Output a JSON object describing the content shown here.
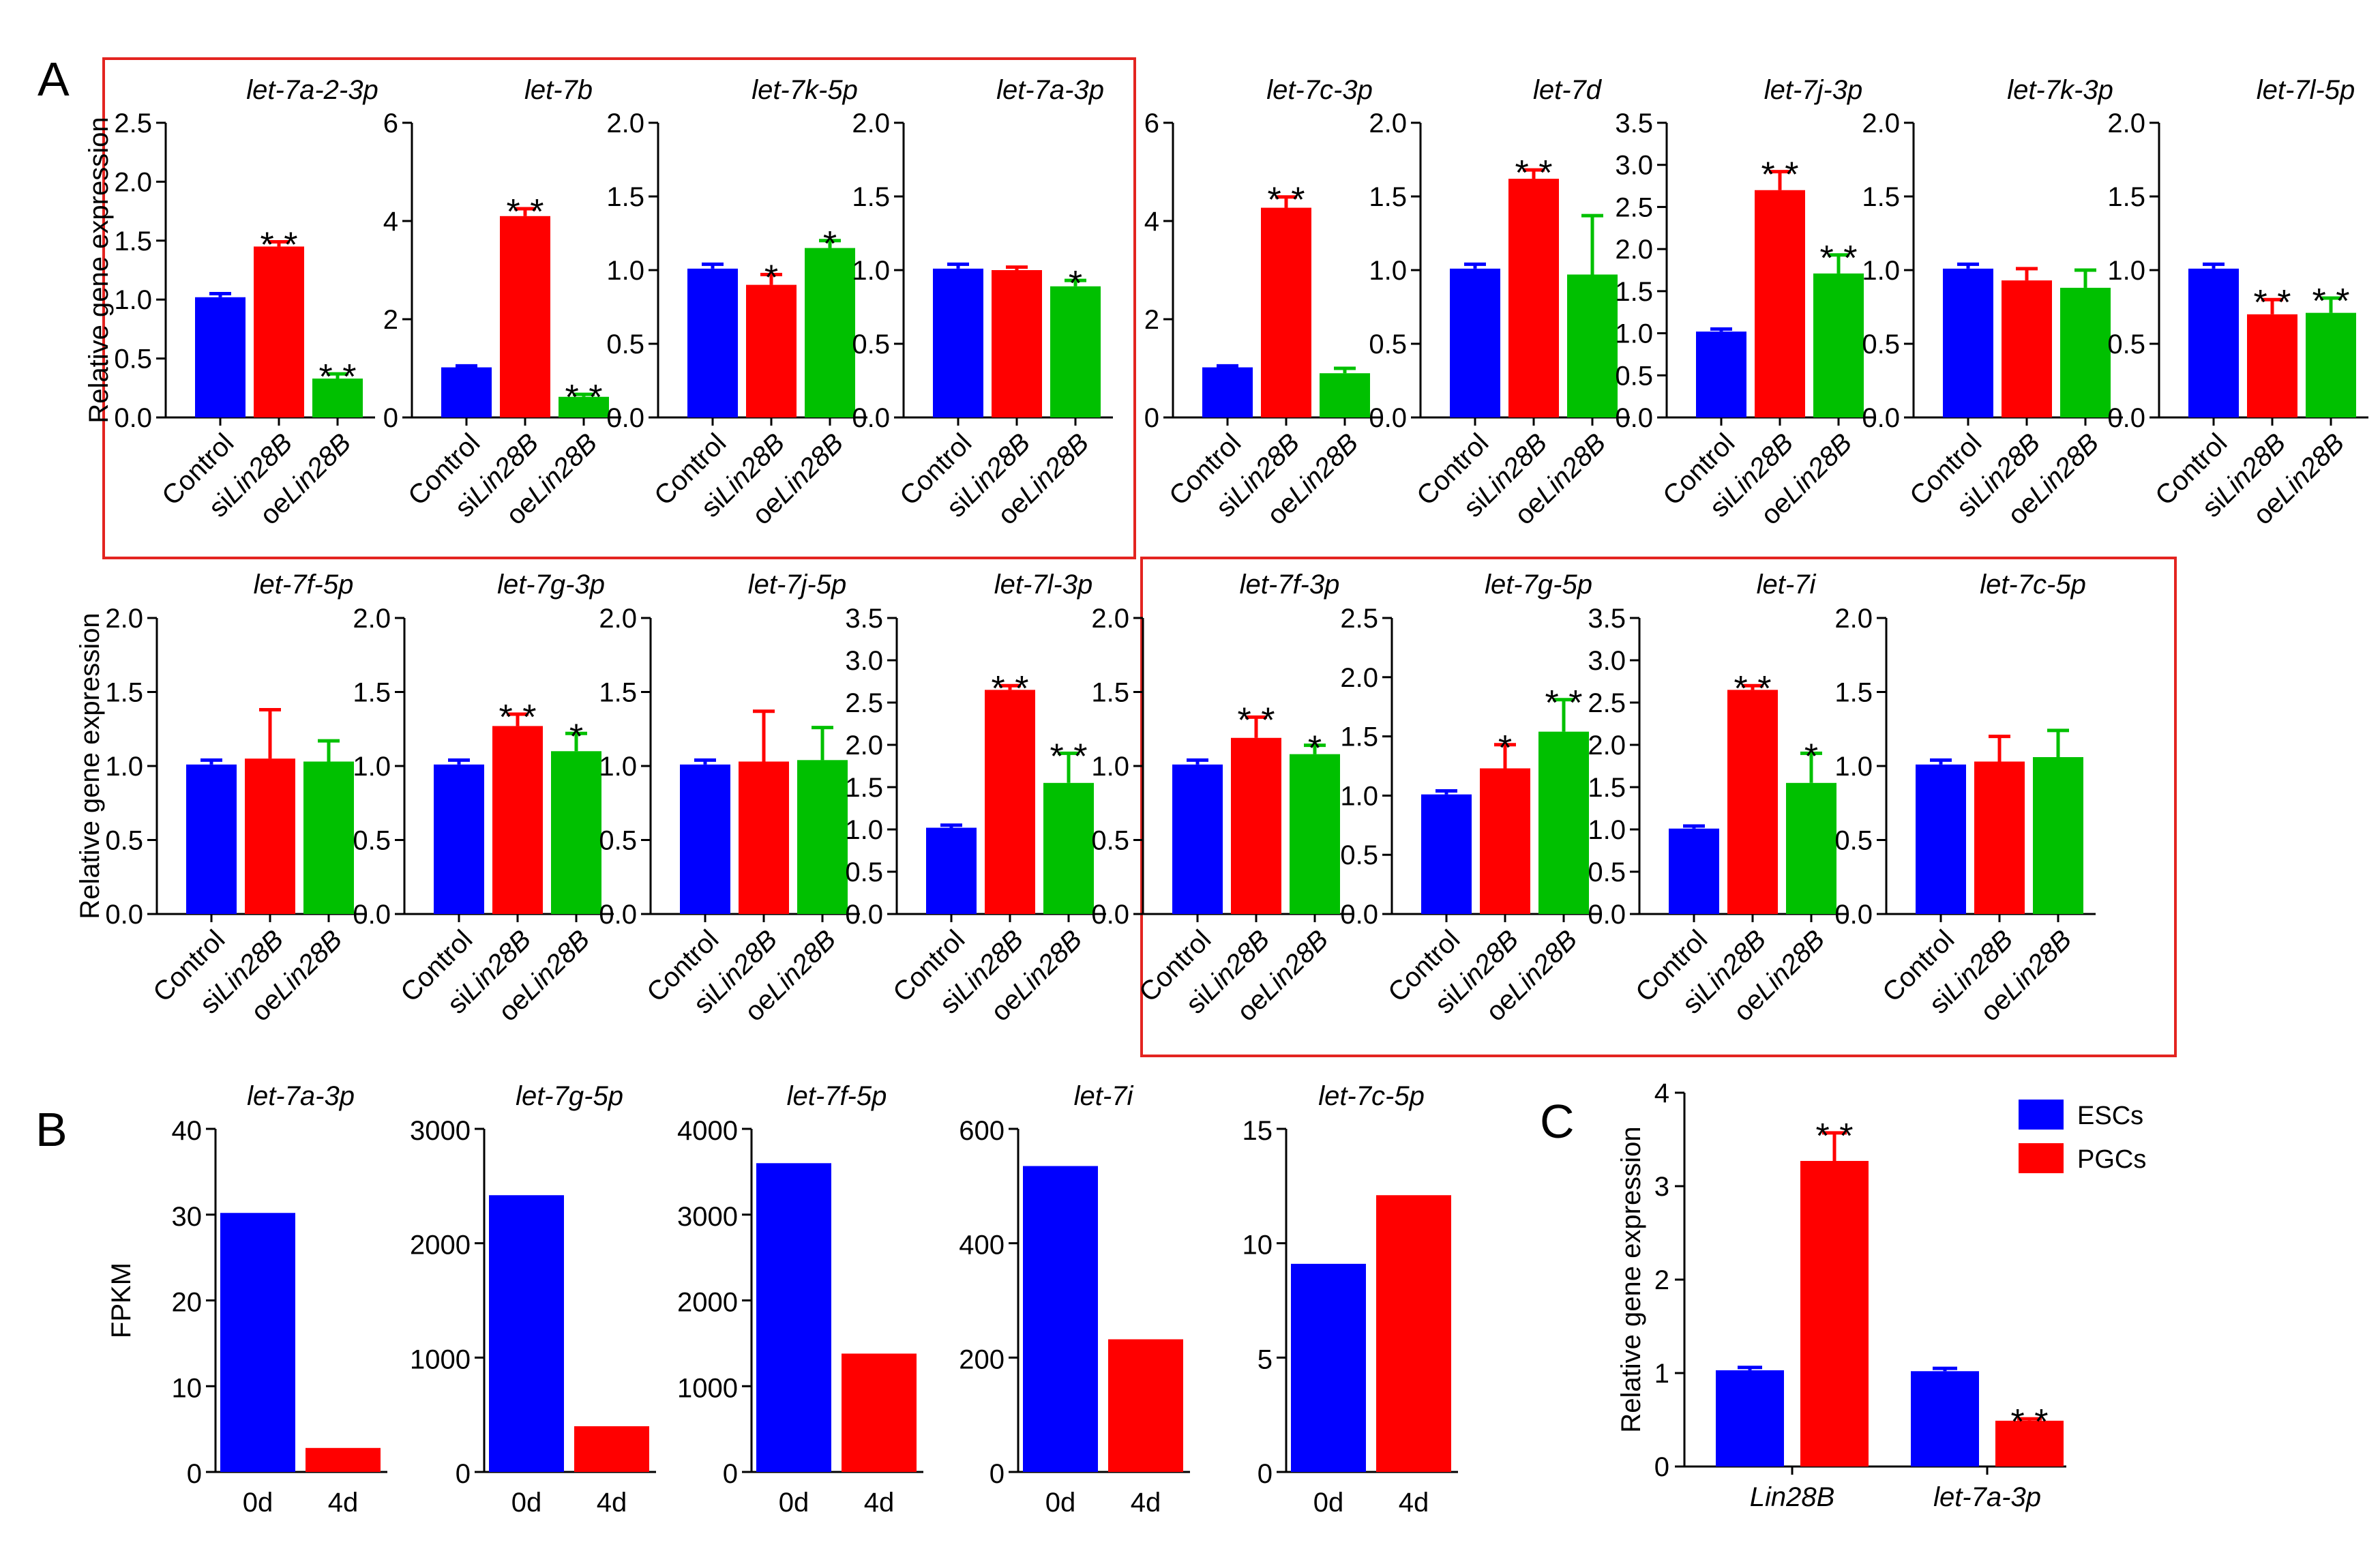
{
  "figure": {
    "panel_labels": [
      "A",
      "B",
      "C"
    ],
    "colors": {
      "control": "#0000ff",
      "siLin28B": "#ff0000",
      "oeLin28B": "#00c000",
      "highlight_box": "#e32420"
    }
  },
  "chart_data": [
    {
      "panel": "A",
      "type": "bar",
      "title": "let-7a-2-3p",
      "ylabel": "Relative gene expression",
      "categories": [
        "Control",
        "siLin28B",
        "oeLin28B"
      ],
      "values": [
        1.02,
        1.45,
        0.33
      ],
      "errors": [
        0.03,
        0.04,
        0.04
      ],
      "significance": [
        "",
        "**",
        "**"
      ],
      "ylim": [
        0,
        2.5
      ],
      "yticks": [
        "0.0",
        "0.5",
        "1.0",
        "1.5",
        "2.0",
        "2.5"
      ]
    },
    {
      "panel": "A",
      "type": "bar",
      "title": "let-7b",
      "ylabel": "",
      "categories": [
        "Control",
        "siLin28B",
        "oeLin28B"
      ],
      "values": [
        1.02,
        4.1,
        0.42
      ],
      "errors": [
        0.03,
        0.15,
        0.05
      ],
      "significance": [
        "",
        "**",
        "**"
      ],
      "ylim": [
        0,
        6
      ],
      "yticks": [
        "0",
        "2",
        "4",
        "6"
      ]
    },
    {
      "panel": "A",
      "type": "bar",
      "title": "let-7k-5p",
      "ylabel": "",
      "categories": [
        "Control",
        "siLin28B",
        "oeLin28B"
      ],
      "values": [
        1.01,
        0.9,
        1.15
      ],
      "errors": [
        0.03,
        0.07,
        0.05
      ],
      "significance": [
        "",
        "*",
        "*"
      ],
      "ylim": [
        0,
        2
      ],
      "yticks": [
        "0.0",
        "0.5",
        "1.0",
        "1.5",
        "2.0"
      ]
    },
    {
      "panel": "A",
      "type": "bar",
      "title": "let-7a-3p",
      "ylabel": "",
      "categories": [
        "Control",
        "siLin28B",
        "oeLin28B"
      ],
      "values": [
        1.01,
        1.0,
        0.89
      ],
      "errors": [
        0.03,
        0.02,
        0.04
      ],
      "significance": [
        "",
        "",
        "*"
      ],
      "ylim": [
        0,
        2
      ],
      "yticks": [
        "0.0",
        "0.5",
        "1.0",
        "1.5",
        "2.0"
      ]
    },
    {
      "panel": "A",
      "type": "bar",
      "title": "let-7c-3p",
      "ylabel": "",
      "categories": [
        "Control",
        "siLin28B",
        "oeLin28B"
      ],
      "values": [
        1.02,
        4.27,
        0.9
      ],
      "errors": [
        0.03,
        0.22,
        0.1
      ],
      "significance": [
        "",
        "**",
        ""
      ],
      "ylim": [
        0,
        6
      ],
      "yticks": [
        "0",
        "2",
        "4",
        "6"
      ]
    },
    {
      "panel": "A",
      "type": "bar",
      "title": "let-7d",
      "ylabel": "",
      "categories": [
        "Control",
        "siLin28B",
        "oeLin28B"
      ],
      "values": [
        1.01,
        1.62,
        0.97
      ],
      "errors": [
        0.03,
        0.06,
        0.4
      ],
      "significance": [
        "",
        "**",
        ""
      ],
      "ylim": [
        0,
        2
      ],
      "yticks": [
        "0.0",
        "0.5",
        "1.0",
        "1.5",
        "2.0"
      ]
    },
    {
      "panel": "A",
      "type": "bar",
      "title": "let-7j-3p",
      "ylabel": "",
      "categories": [
        "Control",
        "siLin28B",
        "oeLin28B"
      ],
      "values": [
        1.02,
        2.7,
        1.71
      ],
      "errors": [
        0.03,
        0.22,
        0.22
      ],
      "significance": [
        "",
        "**",
        "**"
      ],
      "ylim": [
        0,
        3.5
      ],
      "yticks": [
        "0.0",
        "0.5",
        "1.0",
        "1.5",
        "2.0",
        "2.5",
        "3.0",
        "3.5"
      ]
    },
    {
      "panel": "A",
      "type": "bar",
      "title": "let-7k-3p",
      "ylabel": "",
      "categories": [
        "Control",
        "siLin28B",
        "oeLin28B"
      ],
      "values": [
        1.01,
        0.93,
        0.88
      ],
      "errors": [
        0.03,
        0.08,
        0.12
      ],
      "significance": [
        "",
        "",
        ""
      ],
      "ylim": [
        0,
        2
      ],
      "yticks": [
        "0.0",
        "0.5",
        "1.0",
        "1.5",
        "2.0"
      ]
    },
    {
      "panel": "A",
      "type": "bar",
      "title": "let-7l-5p",
      "ylabel": "",
      "categories": [
        "Control",
        "siLin28B",
        "oeLin28B"
      ],
      "values": [
        1.01,
        0.7,
        0.71
      ],
      "errors": [
        0.03,
        0.1,
        0.1
      ],
      "significance": [
        "",
        "**",
        "**"
      ],
      "ylim": [
        0,
        2
      ],
      "yticks": [
        "0.0",
        "0.5",
        "1.0",
        "1.5",
        "2.0"
      ]
    },
    {
      "panel": "A",
      "type": "bar",
      "title": "let-7f-5p",
      "ylabel": "Relative gene expression",
      "categories": [
        "Control",
        "siLin28B",
        "oeLin28B"
      ],
      "values": [
        1.01,
        1.05,
        1.03
      ],
      "errors": [
        0.03,
        0.33,
        0.14
      ],
      "significance": [
        "",
        "",
        ""
      ],
      "ylim": [
        0,
        2
      ],
      "yticks": [
        "0.0",
        "0.5",
        "1.0",
        "1.5",
        "2.0"
      ]
    },
    {
      "panel": "A",
      "type": "bar",
      "title": "let-7g-3p",
      "ylabel": "",
      "categories": [
        "Control",
        "siLin28B",
        "oeLin28B"
      ],
      "values": [
        1.01,
        1.27,
        1.1
      ],
      "errors": [
        0.03,
        0.08,
        0.12
      ],
      "significance": [
        "",
        "**",
        "*"
      ],
      "ylim": [
        0,
        2
      ],
      "yticks": [
        "0.0",
        "0.5",
        "1.0",
        "1.5",
        "2.0"
      ]
    },
    {
      "panel": "A",
      "type": "bar",
      "title": "let-7j-5p",
      "ylabel": "",
      "categories": [
        "Control",
        "siLin28B",
        "oeLin28B"
      ],
      "values": [
        1.01,
        1.03,
        1.04
      ],
      "errors": [
        0.03,
        0.34,
        0.22
      ],
      "significance": [
        "",
        "",
        ""
      ],
      "ylim": [
        0,
        2
      ],
      "yticks": [
        "0.0",
        "0.5",
        "1.0",
        "1.5",
        "2.0"
      ]
    },
    {
      "panel": "A",
      "type": "bar",
      "title": "let-7l-3p",
      "ylabel": "",
      "categories": [
        "Control",
        "siLin28B",
        "oeLin28B"
      ],
      "values": [
        1.02,
        2.65,
        1.55
      ],
      "errors": [
        0.03,
        0.05,
        0.35
      ],
      "significance": [
        "",
        "**",
        "**"
      ],
      "ylim": [
        0,
        3.5
      ],
      "yticks": [
        "0.0",
        "0.5",
        "1.0",
        "1.5",
        "2.0",
        "2.5",
        "3.0",
        "3.5"
      ]
    },
    {
      "panel": "A",
      "type": "bar",
      "title": "let-7f-3p",
      "ylabel": "",
      "categories": [
        "Control",
        "siLin28B",
        "oeLin28B"
      ],
      "values": [
        1.01,
        1.19,
        1.08
      ],
      "errors": [
        0.03,
        0.14,
        0.06
      ],
      "significance": [
        "",
        "**",
        "*"
      ],
      "ylim": [
        0,
        2
      ],
      "yticks": [
        "0.0",
        "0.5",
        "1.0",
        "1.5",
        "2.0"
      ]
    },
    {
      "panel": "A",
      "type": "bar",
      "title": "let-7g-5p",
      "ylabel": "",
      "categories": [
        "Control",
        "siLin28B",
        "oeLin28B"
      ],
      "values": [
        1.01,
        1.23,
        1.54
      ],
      "errors": [
        0.03,
        0.2,
        0.27
      ],
      "significance": [
        "",
        "*",
        "**"
      ],
      "ylim": [
        0,
        2.5
      ],
      "yticks": [
        "0.0",
        "0.5",
        "1.0",
        "1.5",
        "2.0",
        "2.5"
      ]
    },
    {
      "panel": "A",
      "type": "bar",
      "title": "let-7i",
      "ylabel": "",
      "categories": [
        "Control",
        "siLin28B",
        "oeLin28B"
      ],
      "values": [
        1.01,
        2.65,
        1.55
      ],
      "errors": [
        0.03,
        0.05,
        0.35
      ],
      "significance": [
        "",
        "**",
        "*"
      ],
      "ylim": [
        0,
        3.5
      ],
      "yticks": [
        "0.0",
        "0.5",
        "1.0",
        "1.5",
        "2.0",
        "2.5",
        "3.0",
        "3.5"
      ]
    },
    {
      "panel": "A",
      "type": "bar",
      "title": "let-7c-5p",
      "ylabel": "",
      "categories": [
        "Control",
        "siLin28B",
        "oeLin28B"
      ],
      "values": [
        1.01,
        1.03,
        1.06
      ],
      "errors": [
        0.03,
        0.17,
        0.18
      ],
      "significance": [
        "",
        "",
        ""
      ],
      "ylim": [
        0,
        2
      ],
      "yticks": [
        "0.0",
        "0.5",
        "1.0",
        "1.5",
        "2.0"
      ]
    },
    {
      "panel": "B",
      "type": "bar",
      "title": "let-7a-3p",
      "ylabel": "FPKM",
      "categories": [
        "0d",
        "4d"
      ],
      "values": [
        30.2,
        2.8
      ],
      "ylim": [
        0,
        40
      ],
      "yticks": [
        "0",
        "10",
        "20",
        "30",
        "40"
      ]
    },
    {
      "panel": "B",
      "type": "bar",
      "title": "let-7g-5p",
      "ylabel": "",
      "categories": [
        "0d",
        "4d"
      ],
      "values": [
        2420,
        400
      ],
      "ylim": [
        0,
        3000
      ],
      "yticks": [
        "0",
        "1000",
        "2000",
        "3000"
      ]
    },
    {
      "panel": "B",
      "type": "bar",
      "title": "let-7f-5p",
      "ylabel": "",
      "categories": [
        "0d",
        "4d"
      ],
      "values": [
        3600,
        1380
      ],
      "ylim": [
        0,
        4000
      ],
      "yticks": [
        "0",
        "1000",
        "2000",
        "3000",
        "4000"
      ]
    },
    {
      "panel": "B",
      "type": "bar",
      "title": "let-7i",
      "ylabel": "",
      "categories": [
        "0d",
        "4d"
      ],
      "values": [
        535,
        232
      ],
      "ylim": [
        0,
        600
      ],
      "yticks": [
        "0",
        "200",
        "400",
        "600"
      ]
    },
    {
      "panel": "B",
      "type": "bar",
      "title": "let-7c-5p",
      "ylabel": "",
      "categories": [
        "0d",
        "4d"
      ],
      "values": [
        9.1,
        12.1
      ],
      "ylim": [
        0,
        15
      ],
      "yticks": [
        "0",
        "5",
        "10",
        "15"
      ]
    },
    {
      "panel": "C",
      "type": "bar",
      "title": "",
      "ylabel": "Relative gene expression",
      "categories": [
        "Lin28B",
        "let-7a-3p"
      ],
      "series": [
        {
          "name": "ESCs",
          "values": [
            1.03,
            1.02
          ],
          "errors": [
            0.03,
            0.03
          ]
        },
        {
          "name": "PGCs",
          "values": [
            3.27,
            0.49
          ],
          "errors": [
            0.3,
            0.02
          ]
        }
      ],
      "significance": [
        [
          "",
          ""
        ],
        [
          "**",
          "**"
        ]
      ],
      "ylim": [
        0,
        4
      ],
      "yticks": [
        "0",
        "1",
        "2",
        "3",
        "4"
      ],
      "legend": "top-right"
    }
  ]
}
